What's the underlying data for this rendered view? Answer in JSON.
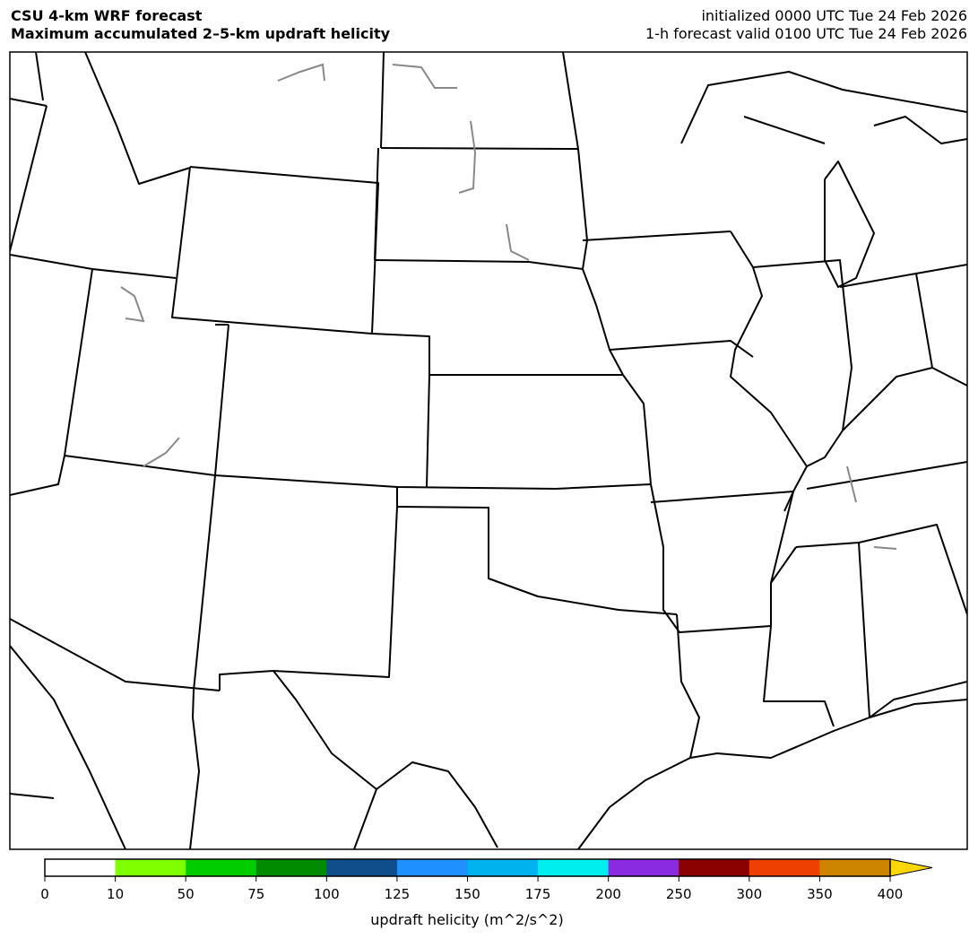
{
  "header": {
    "title": "CSU 4-km WRF forecast",
    "subtitle": "Maximum accumulated 2–5-km updraft helicity",
    "init": "initialized 0000 UTC Tue 24 Feb 2026",
    "valid": "1-h forecast valid 0100 UTC Tue 24 Feb 2026"
  },
  "colorbar": {
    "label": "updraft helicity (m^2/s^2)",
    "ticks": [
      "0",
      "10",
      "50",
      "75",
      "100",
      "125",
      "150",
      "175",
      "200",
      "250",
      "300",
      "350",
      "400"
    ],
    "colors": [
      "#ffffff",
      "#7fff00",
      "#00cd00",
      "#008b00",
      "#104e8b",
      "#1e90ff",
      "#00b2ee",
      "#00eeee",
      "#8a2be2",
      "#8b0000",
      "#ee4000",
      "#cd8500"
    ],
    "extend_color": "#ffd700"
  }
}
